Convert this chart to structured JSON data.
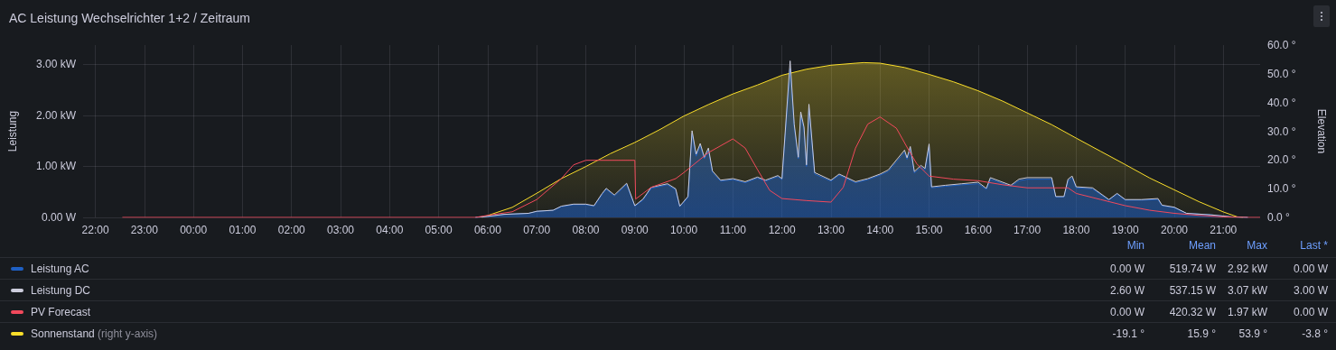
{
  "chart_data": {
    "type": "area",
    "title": "AC Leistung Wechselrichter 1+2 / Zeitraum",
    "ylabel": "Leistung",
    "y2label": "Elevation",
    "xlim": [
      "--06-20T21:45",
      "--06-21T21:45"
    ],
    "xticks": [
      {
        "value": "--06-20T22:00",
        "label": "22:00"
      },
      {
        "value": "--06-20T23:00",
        "label": "23:00"
      },
      {
        "value": "--06-21T00:00",
        "label": "00:00"
      },
      {
        "value": "--06-21T01:00",
        "label": "01:00"
      },
      {
        "value": "--06-21T02:00",
        "label": "02:00"
      },
      {
        "value": "--06-21T03:00",
        "label": "03:00"
      },
      {
        "value": "--06-21T04:00",
        "label": "04:00"
      },
      {
        "value": "--06-21T05:00",
        "label": "05:00"
      },
      {
        "value": "--06-21T06:00",
        "label": "06:00"
      },
      {
        "value": "--06-21T07:00",
        "label": "07:00"
      },
      {
        "value": "--06-21T08:00",
        "label": "08:00"
      },
      {
        "value": "--06-21T09:00",
        "label": "09:00"
      },
      {
        "value": "--06-21T10:00",
        "label": "10:00"
      },
      {
        "value": "--06-21T11:00",
        "label": "11:00"
      },
      {
        "value": "--06-21T12:00",
        "label": "12:00"
      },
      {
        "value": "--06-21T13:00",
        "label": "13:00"
      },
      {
        "value": "--06-21T14:00",
        "label": "14:00"
      },
      {
        "value": "--06-21T15:00",
        "label": "15:00"
      },
      {
        "value": "--06-21T16:00",
        "label": "16:00"
      },
      {
        "value": "--06-21T17:00",
        "label": "17:00"
      },
      {
        "value": "--06-21T18:00",
        "label": "18:00"
      },
      {
        "value": "--06-21T19:00",
        "label": "19:00"
      },
      {
        "value": "--06-21T20:00",
        "label": "20:00"
      },
      {
        "value": "--06-21T21:00",
        "label": "21:00"
      }
    ],
    "ylim": [
      0,
      3.38
    ],
    "yticks": [
      {
        "value": 0,
        "label": "0.00 W"
      },
      {
        "value": 1,
        "label": "1.00 kW"
      },
      {
        "value": 2,
        "label": "2.00 kW"
      },
      {
        "value": 3,
        "label": "3.00 kW"
      }
    ],
    "y2lim": [
      0,
      60
    ],
    "y2ticks": [
      {
        "value": 0,
        "label": "0.0 °"
      },
      {
        "value": 10,
        "label": "10.0 °"
      },
      {
        "value": 20,
        "label": "20.0 °"
      },
      {
        "value": 30,
        "label": "30.0 °"
      },
      {
        "value": 40,
        "label": "40.0 °"
      },
      {
        "value": 50,
        "label": "50.0 °"
      },
      {
        "value": 60,
        "label": "60.0 °"
      }
    ],
    "grid": true,
    "legend": "bottom",
    "marker": "none",
    "annotations": [
      "Min",
      "Mean",
      "Max",
      "Last *",
      "0.00 W",
      "519.74 W",
      "2.92 kW",
      "0.00 W",
      "2.60 W",
      "537.15 W",
      "3.07 kW",
      "3.00 W",
      "0.00 W",
      "420.32 W",
      "1.97 kW",
      "0.00 W",
      "-19.1 °",
      "15.9 °",
      "53.9 °",
      "-3.8 °",
      "(right y-axis)"
    ],
    "series": [
      {
        "name": "Leistung AC",
        "color": "#1f60c4",
        "x": [
          "--06-21T05:45",
          "--06-21T06:00",
          "--06-21T06:20",
          "--06-21T06:50",
          "--06-21T07:00",
          "--06-21T07:20",
          "--06-21T07:30",
          "--06-21T07:45",
          "--06-21T08:00",
          "--06-21T08:10",
          "--06-21T08:20",
          "--06-21T08:25",
          "--06-21T08:35",
          "--06-21T08:50",
          "--06-21T09:00",
          "--06-21T09:10",
          "--06-21T09:20",
          "--06-21T09:40",
          "--06-21T09:50",
          "--06-21T09:55",
          "--06-21T10:05",
          "--06-21T10:10",
          "--06-21T10:15",
          "--06-21T10:20",
          "--06-21T10:25",
          "--06-21T10:30",
          "--06-21T10:35",
          "--06-21T10:45",
          "--06-21T11:00",
          "--06-21T11:15",
          "--06-21T11:30",
          "--06-21T11:40",
          "--06-21T11:55",
          "--06-21T12:00",
          "--06-21T12:10",
          "--06-21T12:15",
          "--06-21T12:20",
          "--06-21T12:23",
          "--06-21T12:27",
          "--06-21T12:30",
          "--06-21T12:33",
          "--06-21T12:40",
          "--06-21T13:00",
          "--06-21T13:10",
          "--06-21T13:30",
          "--06-21T13:45",
          "--06-21T14:00",
          "--06-21T14:10",
          "--06-21T14:30",
          "--06-21T14:33",
          "--06-21T14:37",
          "--06-21T14:42",
          "--06-21T14:50",
          "--06-21T14:55",
          "--06-21T15:00",
          "--06-21T15:03",
          "--06-21T15:20",
          "--06-21T15:40",
          "--06-21T16:00",
          "--06-21T16:10",
          "--06-21T16:15",
          "--06-21T16:40",
          "--06-21T16:50",
          "--06-21T17:00",
          "--06-21T17:30",
          "--06-21T17:35",
          "--06-21T17:45",
          "--06-21T17:50",
          "--06-21T17:55",
          "--06-21T18:00",
          "--06-21T18:20",
          "--06-21T18:40",
          "--06-21T18:50",
          "--06-21T19:00",
          "--06-21T19:20",
          "--06-21T19:40",
          "--06-21T19:45",
          "--06-21T20:00",
          "--06-21T20:15",
          "--06-21T20:45",
          "--06-21T21:10",
          "--06-21T21:30"
        ],
        "values": [
          0,
          0.02,
          0.06,
          0.08,
          0.12,
          0.14,
          0.21,
          0.25,
          0.25,
          0.22,
          0.45,
          0.55,
          0.42,
          0.65,
          0.22,
          0.34,
          0.57,
          0.64,
          0.54,
          0.21,
          0.39,
          1.65,
          1.2,
          1.41,
          1.15,
          1.32,
          0.88,
          0.71,
          0.74,
          0.68,
          0.77,
          0.71,
          0.8,
          0.74,
          2.92,
          1.78,
          1.15,
          2.01,
          1.72,
          1,
          2.15,
          0.85,
          0.71,
          0.83,
          0.68,
          0.74,
          0.83,
          0.9,
          1.28,
          1.14,
          1.35,
          0.87,
          0.99,
          0.93,
          1.4,
          0.58,
          0.61,
          0.64,
          0.66,
          0.55,
          0.75,
          0.61,
          0.72,
          0.75,
          0.75,
          0.4,
          0.4,
          0.72,
          0.78,
          0.58,
          0.56,
          0.34,
          0.46,
          0.34,
          0.34,
          0.35,
          0.23,
          0.19,
          0.08,
          0.05,
          0.01,
          0
        ]
      },
      {
        "name": "Leistung DC",
        "color": "#ccccdc",
        "type": "line",
        "x": [
          "--06-21T05:45",
          "--06-21T06:00",
          "--06-21T06:20",
          "--06-21T06:50",
          "--06-21T07:00",
          "--06-21T07:20",
          "--06-21T07:30",
          "--06-21T07:45",
          "--06-21T08:00",
          "--06-21T08:10",
          "--06-21T08:20",
          "--06-21T08:25",
          "--06-21T08:35",
          "--06-21T08:50",
          "--06-21T09:00",
          "--06-21T09:10",
          "--06-21T09:20",
          "--06-21T09:40",
          "--06-21T09:50",
          "--06-21T09:55",
          "--06-21T10:05",
          "--06-21T10:10",
          "--06-21T10:15",
          "--06-21T10:20",
          "--06-21T10:25",
          "--06-21T10:30",
          "--06-21T10:35",
          "--06-21T10:45",
          "--06-21T11:00",
          "--06-21T11:15",
          "--06-21T11:30",
          "--06-21T11:40",
          "--06-21T11:55",
          "--06-21T12:00",
          "--06-21T12:10",
          "--06-21T12:15",
          "--06-21T12:20",
          "--06-21T12:23",
          "--06-21T12:27",
          "--06-21T12:30",
          "--06-21T12:33",
          "--06-21T12:40",
          "--06-21T13:00",
          "--06-21T13:10",
          "--06-21T13:30",
          "--06-21T13:45",
          "--06-21T14:00",
          "--06-21T14:10",
          "--06-21T14:30",
          "--06-21T14:33",
          "--06-21T14:37",
          "--06-21T14:42",
          "--06-21T14:50",
          "--06-21T14:55",
          "--06-21T15:00",
          "--06-21T15:03",
          "--06-21T15:20",
          "--06-21T15:40",
          "--06-21T16:00",
          "--06-21T16:10",
          "--06-21T16:15",
          "--06-21T16:40",
          "--06-21T16:50",
          "--06-21T17:00",
          "--06-21T17:30",
          "--06-21T17:35",
          "--06-21T17:45",
          "--06-21T17:50",
          "--06-21T17:55",
          "--06-21T18:00",
          "--06-21T18:20",
          "--06-21T18:40",
          "--06-21T18:50",
          "--06-21T19:00",
          "--06-21T19:20",
          "--06-21T19:40",
          "--06-21T19:45",
          "--06-21T20:00",
          "--06-21T20:15",
          "--06-21T20:45",
          "--06-21T21:10",
          "--06-21T21:30"
        ],
        "values": [
          0,
          0.02,
          0.06,
          0.08,
          0.12,
          0.14,
          0.22,
          0.26,
          0.26,
          0.23,
          0.47,
          0.57,
          0.44,
          0.67,
          0.23,
          0.36,
          0.59,
          0.66,
          0.56,
          0.22,
          0.41,
          1.7,
          1.24,
          1.45,
          1.18,
          1.36,
          0.91,
          0.73,
          0.76,
          0.7,
          0.79,
          0.73,
          0.82,
          0.76,
          3.07,
          1.83,
          1.18,
          2.07,
          1.77,
          1.03,
          2.22,
          0.88,
          0.73,
          0.85,
          0.7,
          0.76,
          0.85,
          0.93,
          1.32,
          1.17,
          1.39,
          0.9,
          1.02,
          0.96,
          1.44,
          0.6,
          0.63,
          0.66,
          0.69,
          0.57,
          0.78,
          0.63,
          0.75,
          0.78,
          0.78,
          0.41,
          0.41,
          0.75,
          0.81,
          0.6,
          0.58,
          0.35,
          0.47,
          0.35,
          0.35,
          0.37,
          0.24,
          0.2,
          0.08,
          0.05,
          0.01,
          0
        ]
      },
      {
        "name": "PV Forecast",
        "color": "#f2495c",
        "type": "line",
        "x": [
          "--06-20T22:33",
          "--06-21T05:45",
          "--06-21T06:00",
          "--06-21T06:30",
          "--06-21T07:00",
          "--06-21T07:30",
          "--06-21T07:45",
          "--06-21T08:00",
          "--06-21T09:00",
          "--06-21T09:01",
          "--06-21T09:20",
          "--06-21T09:50",
          "--06-21T10:00",
          "--06-21T10:30",
          "--06-21T11:00",
          "--06-21T11:15",
          "--06-21T11:30",
          "--06-21T11:45",
          "--06-21T12:00",
          "--06-21T12:30",
          "--06-21T13:00",
          "--06-21T13:15",
          "--06-21T13:30",
          "--06-21T13:45",
          "--06-21T14:00",
          "--06-21T14:20",
          "--06-21T14:35",
          "--06-21T14:45",
          "--06-21T15:00",
          "--06-21T15:30",
          "--06-21T16:00",
          "--06-21T16:30",
          "--06-21T17:00",
          "--06-21T17:50",
          "--06-21T18:00",
          "--06-21T18:30",
          "--06-21T19:00",
          "--06-21T19:30",
          "--06-21T20:00",
          "--06-21T20:30",
          "--06-21T21:00",
          "--06-21T21:30",
          "--06-21T21:45"
        ],
        "values": [
          0,
          0,
          0.04,
          0.11,
          0.35,
          0.76,
          1.03,
          1.12,
          1.12,
          0.36,
          0.59,
          0.76,
          0.88,
          1.27,
          1.54,
          1.36,
          0.94,
          0.53,
          0.37,
          0.33,
          0.3,
          0.59,
          1.36,
          1.83,
          1.97,
          1.75,
          1.32,
          1.05,
          0.81,
          0.75,
          0.72,
          0.64,
          0.58,
          0.58,
          0.47,
          0.35,
          0.23,
          0.14,
          0.08,
          0.04,
          0.01,
          0,
          0
        ]
      },
      {
        "name": "Sonnenstand",
        "color": "#fade2a",
        "axis": "y2",
        "x": [
          "--06-21T05:53",
          "--06-21T06:30",
          "--06-21T07:00",
          "--06-21T07:30",
          "--06-21T08:00",
          "--06-21T08:30",
          "--06-21T09:00",
          "--06-21T09:30",
          "--06-21T10:00",
          "--06-21T10:30",
          "--06-21T11:00",
          "--06-21T11:30",
          "--06-21T12:00",
          "--06-21T12:30",
          "--06-21T13:00",
          "--06-21T13:30",
          "--06-21T13:40",
          "--06-21T14:00",
          "--06-21T14:30",
          "--06-21T15:00",
          "--06-21T15:30",
          "--06-21T16:00",
          "--06-21T16:30",
          "--06-21T17:00",
          "--06-21T17:30",
          "--06-21T18:00",
          "--06-21T18:30",
          "--06-21T19:00",
          "--06-21T19:30",
          "--06-21T20:00",
          "--06-21T20:30",
          "--06-21T21:00",
          "--06-21T21:17",
          "--06-21T21:24"
        ],
        "values": [
          0,
          3.5,
          8.4,
          13.5,
          17.7,
          22.2,
          26.1,
          30.5,
          35.3,
          39.3,
          43,
          46.1,
          49.5,
          51.6,
          53,
          53.7,
          53.9,
          53.7,
          52.2,
          49.8,
          47.2,
          44.1,
          40.5,
          36.4,
          32.3,
          27.6,
          23,
          18.4,
          13.7,
          9.6,
          5.5,
          1.9,
          0.2,
          0
        ]
      }
    ]
  }
}
